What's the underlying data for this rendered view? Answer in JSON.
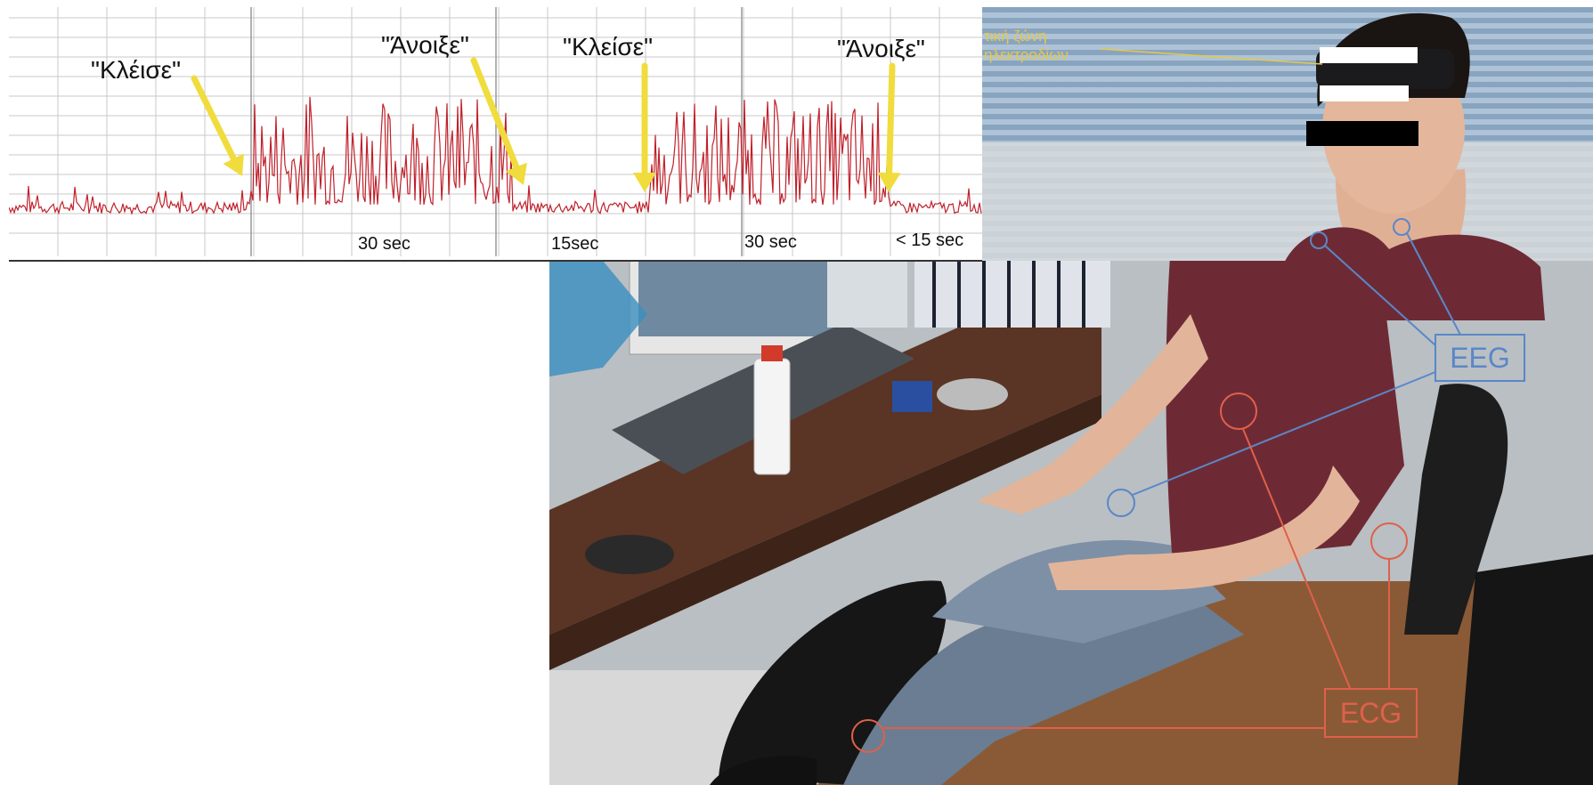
{
  "chart": {
    "labels": {
      "close_1": "\"Κλέισε\"",
      "open_1": "\"Άνοιξε\"",
      "close_2": "\"Κλείσε\"",
      "open_2": "\"Άνοιξε\""
    },
    "durations": {
      "d1": "30 sec",
      "d2": "15sec",
      "d3": "30 sec",
      "d4": "< 15 sec"
    },
    "colors": {
      "signal": "#c0202a",
      "arrow": "#f0dc3c",
      "grid": "#c8c8c8"
    }
  },
  "photo": {
    "headband_label": [
      "τική ζώνη",
      "ηλεκτροδίων"
    ],
    "eeg_label": "EEG",
    "ecg_label": "ECG",
    "colors": {
      "eeg": "#5a87c8",
      "ecg": "#e0604a",
      "headband": "#e6c84a"
    }
  }
}
